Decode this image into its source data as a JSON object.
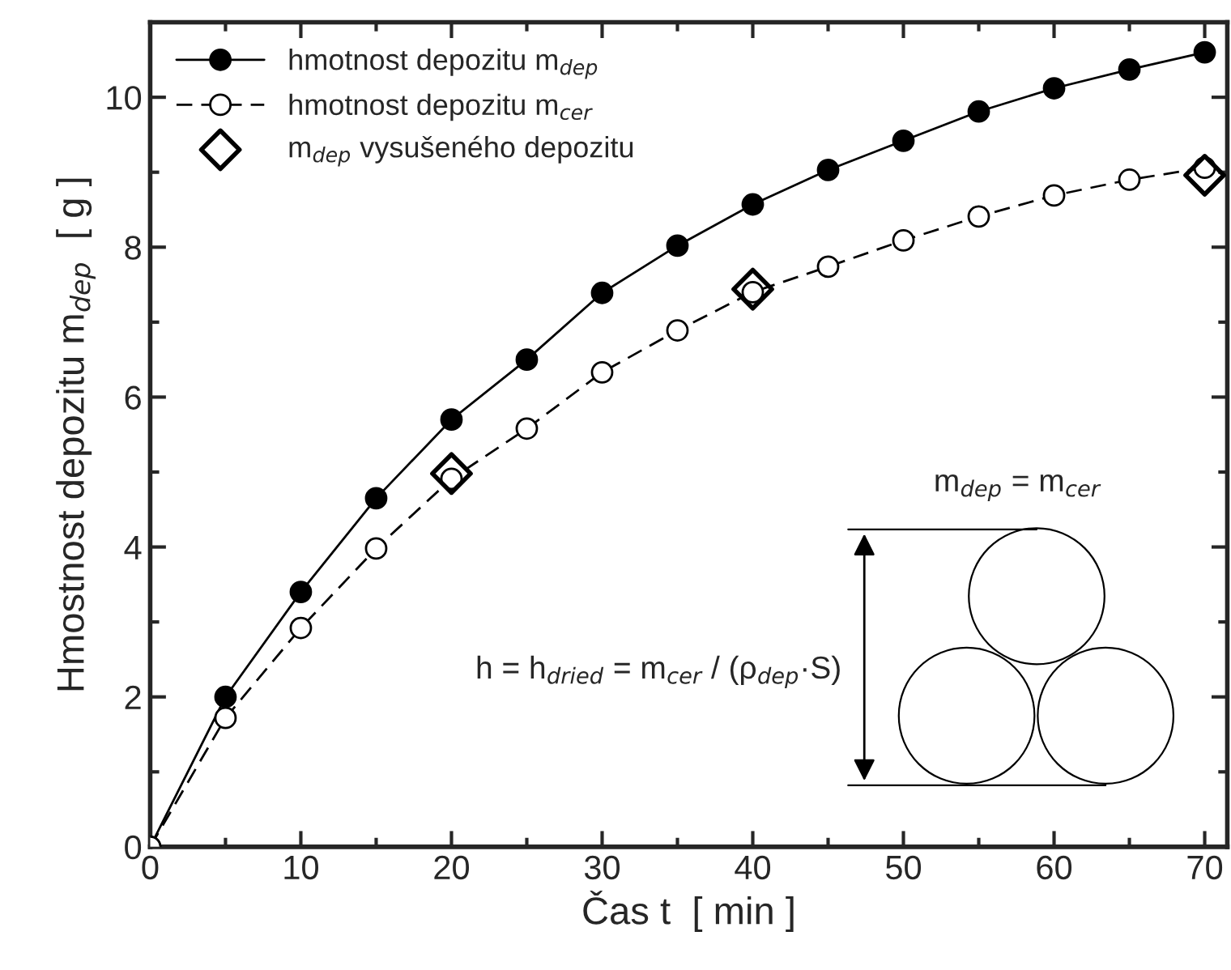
{
  "chart_data": {
    "type": "line",
    "xlabel": "Čas t  [ min ]",
    "ylabel": "Hmostnost depozitu m$_{dep}$  [ g ]",
    "x": [
      0,
      5,
      10,
      15,
      20,
      25,
      30,
      35,
      40,
      45,
      50,
      55,
      60,
      65,
      70
    ],
    "series": [
      {
        "name": "hmotnost depozitu m$_{dep}$",
        "color": "#000000",
        "marker": "circle",
        "line_style": "solid",
        "values": [
          0,
          2.0,
          3.4,
          4.65,
          5.7,
          6.5,
          7.39,
          8.02,
          8.57,
          9.03,
          9.42,
          9.81,
          10.12,
          10.37,
          10.6
        ]
      },
      {
        "name": "hmotnost depozitu m$_{cer}$",
        "color": "#000000",
        "marker": "circle",
        "line_style": "dashed",
        "values": [
          0,
          1.72,
          2.92,
          3.98,
          4.91,
          5.58,
          6.33,
          6.89,
          7.4,
          7.74,
          8.09,
          8.41,
          8.69,
          8.9,
          9.06
        ]
      },
      {
        "name": "m$_{dep}$ vysušeného depozitu",
        "type": "scatter",
        "color": "#000000",
        "marker": "diamond",
        "x": [
          20,
          40,
          70
        ],
        "values": [
          4.98,
          7.44,
          8.96
        ]
      }
    ],
    "xlim": [
      0,
      71.5
    ],
    "xticks": [
      0,
      10,
      20,
      30,
      40,
      50,
      60,
      70
    ],
    "ylim": [
      0,
      11
    ],
    "yticks": [
      0,
      2,
      4,
      6,
      8,
      10
    ],
    "grid": false,
    "legend": "top left",
    "annotations": [
      "m$_{dep}$ = m$_{cer}$",
      "h = h$_{dried}$ = m$_{cer}$ / (ρ$_{dep}$·S)"
    ]
  }
}
